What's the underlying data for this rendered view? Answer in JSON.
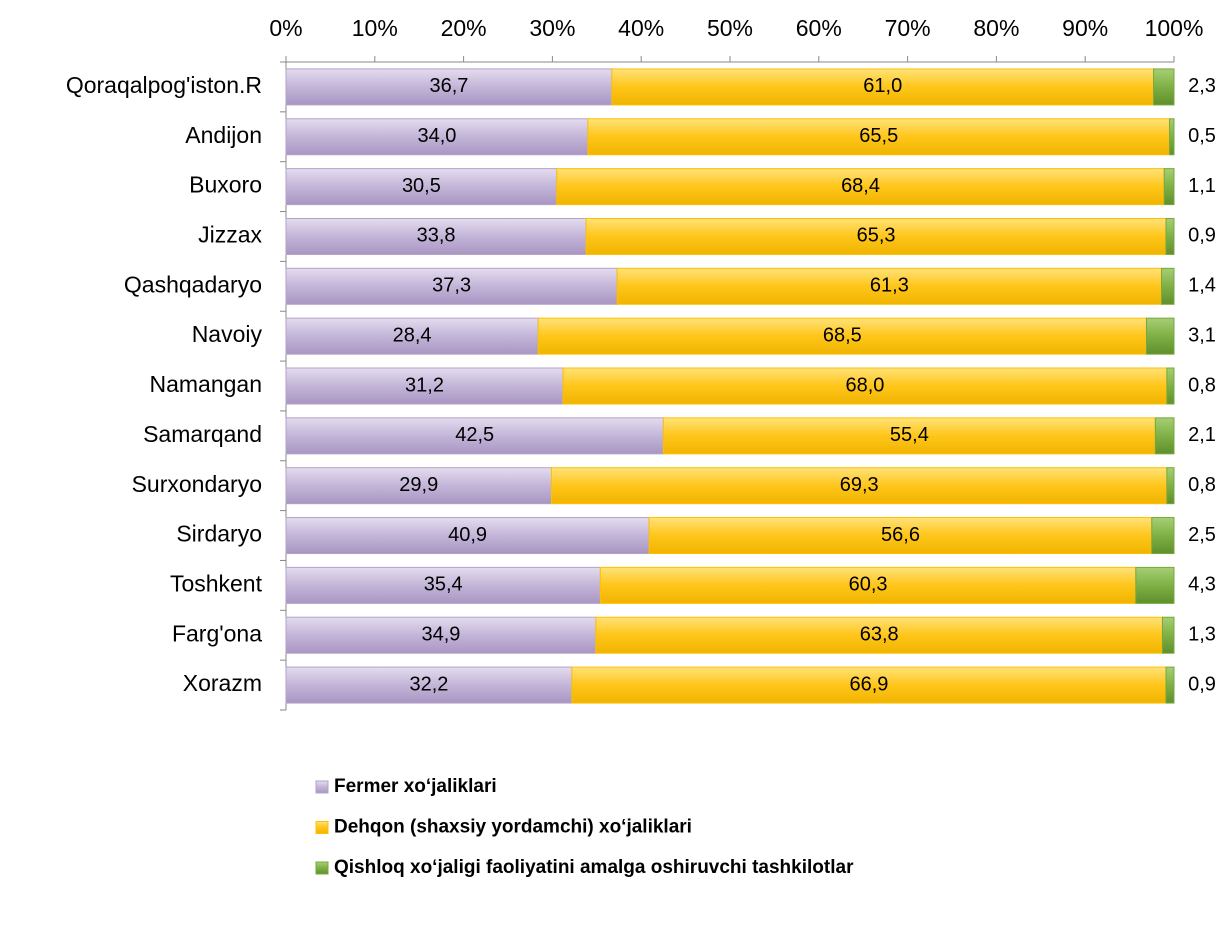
{
  "chart_data": {
    "type": "stacked_bar_horizontal",
    "categories": [
      "Qoraqalpog'iston.R",
      "Andijon",
      "Buxoro",
      "Jizzax",
      "Qashqadaryo",
      "Navoiy",
      "Namangan",
      "Samarqand",
      "Surxondaryo",
      "Sirdaryo",
      "Toshkent",
      "Farg'ona",
      "Xorazm"
    ],
    "series": [
      {
        "name": "Fermer xoʻjaliklari",
        "color": "#b3a2c7",
        "values": [
          36.7,
          34.0,
          30.5,
          33.8,
          37.3,
          28.4,
          31.2,
          42.5,
          29.9,
          40.9,
          35.4,
          34.9,
          32.2
        ],
        "value_labels": [
          "36,7",
          "34,0",
          "30,5",
          "33,8",
          "37,3",
          "28,4",
          "31,2",
          "42,5",
          "29,9",
          "40,9",
          "35,4",
          "34,9",
          "32,2"
        ]
      },
      {
        "name": "Dehqon (shaxsiy yordamchi) xoʻjaliklari",
        "color": "#ffc000",
        "values": [
          61.0,
          65.5,
          68.4,
          65.3,
          61.3,
          68.5,
          68.0,
          55.4,
          69.3,
          56.6,
          60.3,
          63.8,
          66.9
        ],
        "value_labels": [
          "61,0",
          "65,5",
          "68,4",
          "65,3",
          "61,3",
          "68,5",
          "68,0",
          "55,4",
          "69,3",
          "56,6",
          "60,3",
          "63,8",
          "66,9"
        ]
      },
      {
        "name": "Qishloq xoʻjaligi faoliyatini amalga oshiruvchi tashkilotlar",
        "color": "#77a83c",
        "values": [
          2.3,
          0.5,
          1.1,
          0.9,
          1.4,
          3.1,
          0.8,
          2.1,
          0.8,
          2.5,
          4.3,
          1.3,
          0.9
        ],
        "value_labels": [
          "2,3",
          "0,5",
          "1,1",
          "0,9",
          "1,4",
          "3,1",
          "0,8",
          "2,1",
          "0,8",
          "2,5",
          "4,3",
          "1,3",
          "0,9"
        ]
      }
    ],
    "xlim": [
      0,
      100
    ],
    "xticks": [
      {
        "value": 0,
        "label": "0%"
      },
      {
        "value": 10,
        "label": "10%"
      },
      {
        "value": 20,
        "label": "20%"
      },
      {
        "value": 30,
        "label": "30%"
      },
      {
        "value": 40,
        "label": "40%"
      },
      {
        "value": 50,
        "label": "50%"
      },
      {
        "value": 60,
        "label": "60%"
      },
      {
        "value": 70,
        "label": "70%"
      },
      {
        "value": 80,
        "label": "80%"
      },
      {
        "value": 90,
        "label": "90%"
      },
      {
        "value": 100,
        "label": "100%"
      }
    ],
    "legend": "bottom"
  }
}
